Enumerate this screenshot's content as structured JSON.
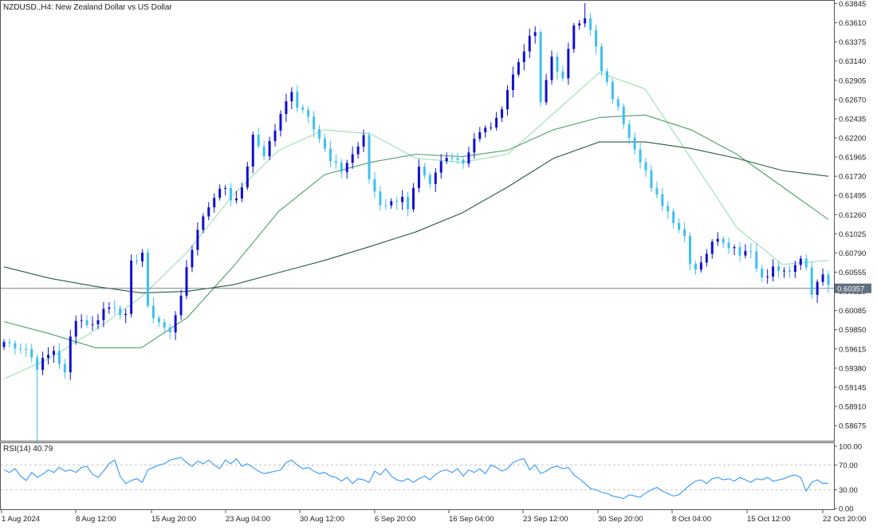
{
  "header": {
    "title": "NZDUSD.,H4:  New Zealand Dollar vs US Dollar"
  },
  "rsi": {
    "label": "RSI(14) 40.79",
    "value": 40.79,
    "ticks": [
      "100.00",
      "70.00",
      "30.00",
      "0.00"
    ],
    "levels": [
      70,
      30
    ],
    "color": "#1e90ff"
  },
  "price_axis": {
    "ticks": [
      "0.63845",
      "0.63610",
      "0.63375",
      "0.63140",
      "0.62905",
      "0.62670",
      "0.62435",
      "0.62200",
      "0.61965",
      "0.61730",
      "0.61495",
      "0.61260",
      "0.61025",
      "0.60790",
      "0.60555",
      "0.60320",
      "0.60085",
      "0.59850",
      "0.59615",
      "0.59380",
      "0.59145",
      "0.58910",
      "0.58675"
    ],
    "current_price": "0.60357"
  },
  "time_axis": {
    "ticks": [
      "1 Aug 2024",
      "8 Aug 12:00",
      "15 Aug 20:00",
      "23 Aug 04:00",
      "30 Aug 12:00",
      "6 Sep 20:00",
      "16 Sep 04:00",
      "23 Sep 12:00",
      "30 Sep 20:00",
      "8 Oct 04:00",
      "15 Oct 12:00",
      "22 Oct 20:00"
    ]
  },
  "colors": {
    "bull": "#1010d0",
    "bear": "#3cc0f0",
    "ma_fast": "#98e0b4",
    "ma_mid": "#4aa06a",
    "ma_slow": "#2a5a3e",
    "price_line": "#607080",
    "grid": "#c8c8c8"
  },
  "chart_data": [
    {
      "type": "candlestick",
      "symbol": "NZDUSD.",
      "timeframe": "H4",
      "title": "NZDUSD.,H4:  New Zealand Dollar vs US Dollar",
      "ylim": [
        0.585,
        0.6385
      ],
      "current_price": 0.60357,
      "close_path": [
        [
          0,
          0.597
        ],
        [
          4,
          0.5962
        ],
        [
          6,
          0.594
        ],
        [
          9,
          0.596
        ],
        [
          11,
          0.593
        ],
        [
          12,
          0.5975
        ],
        [
          13,
          0.6
        ],
        [
          16,
          0.599
        ],
        [
          18,
          0.601
        ],
        [
          20,
          0.6015
        ],
        [
          22,
          0.6
        ],
        [
          23,
          0.6065
        ],
        [
          25,
          0.608
        ],
        [
          26,
          0.601
        ],
        [
          28,
          0.5995
        ],
        [
          30,
          0.598
        ],
        [
          32,
          0.603
        ],
        [
          35,
          0.611
        ],
        [
          38,
          0.615
        ],
        [
          40,
          0.616
        ],
        [
          41,
          0.6145
        ],
        [
          43,
          0.6155
        ],
        [
          45,
          0.622
        ],
        [
          47,
          0.62
        ],
        [
          49,
          0.623
        ],
        [
          52,
          0.628
        ],
        [
          53,
          0.626
        ],
        [
          55,
          0.625
        ],
        [
          57,
          0.622
        ],
        [
          59,
          0.619
        ],
        [
          61,
          0.618
        ],
        [
          63,
          0.62
        ],
        [
          65,
          0.622
        ],
        [
          66,
          0.617
        ],
        [
          68,
          0.614
        ],
        [
          70,
          0.614
        ],
        [
          72,
          0.615
        ],
        [
          73,
          0.613
        ],
        [
          75,
          0.618
        ],
        [
          77,
          0.616
        ],
        [
          79,
          0.619
        ],
        [
          81,
          0.62
        ],
        [
          83,
          0.619
        ],
        [
          85,
          0.622
        ],
        [
          87,
          0.623
        ],
        [
          89,
          0.624
        ],
        [
          91,
          0.628
        ],
        [
          94,
          0.633
        ],
        [
          96,
          0.635
        ],
        [
          97,
          0.626
        ],
        [
          99,
          0.632
        ],
        [
          101,
          0.629
        ],
        [
          103,
          0.636
        ],
        [
          105,
          0.637
        ],
        [
          107,
          0.633
        ],
        [
          108,
          0.63
        ],
        [
          110,
          0.627
        ],
        [
          112,
          0.624
        ],
        [
          114,
          0.621
        ],
        [
          116,
          0.618
        ],
        [
          117,
          0.6155
        ],
        [
          119,
          0.614
        ],
        [
          121,
          0.612
        ],
        [
          123,
          0.61
        ],
        [
          124,
          0.607
        ],
        [
          125,
          0.606
        ],
        [
          127,
          0.608
        ],
        [
          129,
          0.61
        ],
        [
          131,
          0.609
        ],
        [
          133,
          0.608
        ],
        [
          135,
          0.6085
        ],
        [
          136,
          0.606
        ],
        [
          137,
          0.605
        ],
        [
          139,
          0.606
        ],
        [
          141,
          0.6055
        ],
        [
          143,
          0.606
        ],
        [
          144,
          0.607
        ],
        [
          145,
          0.606
        ],
        [
          146,
          0.603
        ],
        [
          147,
          0.6045
        ],
        [
          148,
          0.6057
        ],
        [
          149,
          0.6036
        ]
      ],
      "spikes": [
        {
          "bar": 6,
          "low": 0.5845
        },
        {
          "bar": 105,
          "high": 0.6385
        }
      ],
      "moving_averages": [
        {
          "role": "fast",
          "values": [
            0.5925,
            0.595,
            0.5985,
            0.6025,
            0.608,
            0.615,
            0.6205,
            0.623,
            0.6225,
            0.6195,
            0.619,
            0.62,
            0.625,
            0.63,
            0.628,
            0.6195,
            0.611,
            0.6065,
            0.607
          ]
        },
        {
          "role": "mid",
          "values": [
            0.5995,
            0.598,
            0.5963,
            0.5963,
            0.6,
            0.6062,
            0.613,
            0.6175,
            0.619,
            0.62,
            0.6197,
            0.6205,
            0.623,
            0.6245,
            0.6248,
            0.623,
            0.62,
            0.616,
            0.612
          ]
        },
        {
          "role": "slow",
          "values": [
            0.6062,
            0.6048,
            0.6038,
            0.603,
            0.6032,
            0.604,
            0.6055,
            0.607,
            0.6087,
            0.6105,
            0.6128,
            0.616,
            0.6195,
            0.6215,
            0.6215,
            0.6207,
            0.6195,
            0.618,
            0.6173
          ]
        }
      ]
    },
    {
      "type": "line",
      "name": "RSI(14) 40.79",
      "ylim": [
        0,
        100
      ],
      "levels": [
        70,
        30
      ],
      "last": 40.79,
      "values": [
        62,
        58,
        64,
        52,
        45,
        58,
        50,
        55,
        62,
        58,
        66,
        60,
        62,
        58,
        66,
        68,
        55,
        50,
        60,
        72,
        78,
        52,
        40,
        45,
        48,
        42,
        62,
        66,
        70,
        72,
        78,
        80,
        82,
        74,
        68,
        76,
        72,
        78,
        70,
        64,
        78,
        72,
        80,
        68,
        72,
        66,
        60,
        56,
        58,
        60,
        62,
        74,
        78,
        70,
        64,
        66,
        60,
        56,
        58,
        52,
        50,
        44,
        50,
        40,
        48,
        46,
        42,
        60,
        54,
        64,
        52,
        46,
        44,
        48,
        42,
        48,
        52,
        46,
        55,
        60,
        62,
        58,
        64,
        52,
        62,
        58,
        64,
        56,
        70,
        66,
        60,
        64,
        74,
        78,
        80,
        62,
        70,
        56,
        60,
        66,
        68,
        64,
        66,
        54,
        48,
        40,
        32,
        30,
        26,
        24,
        20,
        18,
        16,
        22,
        20,
        18,
        25,
        30,
        34,
        28,
        24,
        20,
        22,
        30,
        38,
        44,
        46,
        40,
        48,
        50,
        46,
        48,
        44,
        50,
        46,
        42,
        48,
        46,
        50,
        44,
        46,
        48,
        52,
        54,
        50,
        28,
        42,
        46,
        40,
        41
      ]
    }
  ]
}
